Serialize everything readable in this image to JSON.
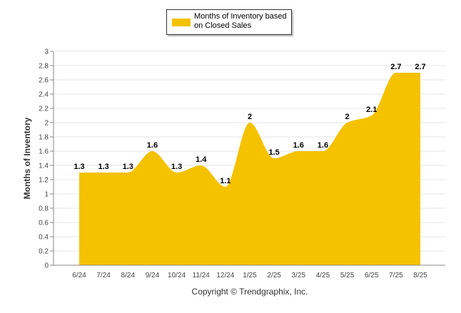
{
  "legend": {
    "label": "Months of Inventory based on Closed Sales",
    "color": "#F5C200"
  },
  "footer": {
    "copyright": "Copyright © Trendgraphix, Inc."
  },
  "chart_data": {
    "type": "area",
    "categories": [
      "6/24",
      "7/24",
      "8/24",
      "9/24",
      "10/24",
      "11/24",
      "12/24",
      "1/25",
      "2/25",
      "3/25",
      "4/25",
      "5/25",
      "6/25",
      "7/25",
      "8/25"
    ],
    "series": [
      {
        "name": "Months of Inventory based on Closed Sales",
        "values": [
          1.3,
          1.3,
          1.3,
          1.6,
          1.3,
          1.4,
          1.1,
          2,
          1.5,
          1.6,
          1.6,
          2,
          2.1,
          2.7,
          2.7
        ],
        "labels": [
          "1.3",
          "1.3",
          "1.3",
          "1.6",
          "1.3",
          "1.4",
          "1.1",
          "2",
          "1.5",
          "1.6",
          "1.6",
          "2",
          "2.1",
          "2.7",
          "2.7"
        ],
        "color": "#F5C200"
      }
    ],
    "title": "",
    "xlabel": "",
    "ylabel": "Months of Inventory",
    "ylim": [
      0,
      3
    ],
    "yticks": [
      "0",
      "0.2",
      "0.4",
      "0.6",
      "0.8",
      "1",
      "1.2",
      "1.4",
      "1.6",
      "1.8",
      "2",
      "2.2",
      "2.4",
      "2.6",
      "2.8",
      "3"
    ],
    "grid": true,
    "legend_position": "top-center"
  }
}
